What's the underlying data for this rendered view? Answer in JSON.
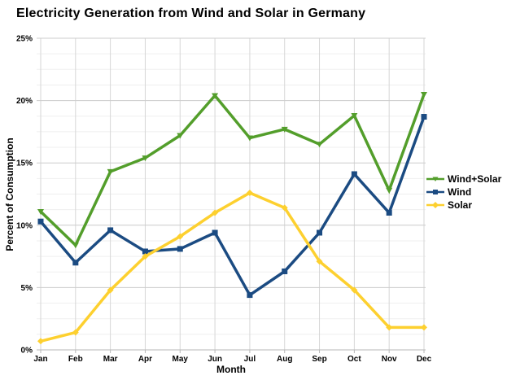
{
  "title": "Electricity Generation from Wind and Solar in Germany",
  "chart_data": {
    "type": "line",
    "title": "Electricity Generation from Wind and Solar in Germany",
    "xlabel": "Month",
    "ylabel": "Percent of Consumption",
    "x": [
      "Jan",
      "Feb",
      "Mar",
      "Apr",
      "May",
      "Jun",
      "Jul",
      "Aug",
      "Sep",
      "Oct",
      "Nov",
      "Dec"
    ],
    "y_ticks": [
      "0%",
      "5%",
      "10%",
      "15%",
      "20%",
      "25%"
    ],
    "ylim": [
      0,
      25
    ],
    "y_major_step": 5,
    "y_minor_step": 1.25,
    "grid": "on",
    "legend_position": "right",
    "series": [
      {
        "name": "Wind+Solar",
        "color": "#539e2b",
        "marker": "triangle-down",
        "values": [
          11.1,
          8.4,
          14.3,
          15.4,
          17.2,
          20.4,
          17.0,
          17.7,
          16.5,
          18.8,
          12.8,
          20.5
        ]
      },
      {
        "name": "Wind",
        "color": "#1b4b82",
        "marker": "square",
        "values": [
          10.3,
          7.0,
          9.6,
          7.9,
          8.1,
          9.4,
          4.4,
          6.3,
          9.4,
          14.1,
          11.0,
          18.7
        ]
      },
      {
        "name": "Solar",
        "color": "#fdd02f",
        "marker": "diamond",
        "values": [
          0.7,
          1.4,
          4.8,
          7.5,
          9.1,
          11.0,
          12.6,
          11.4,
          7.1,
          4.8,
          1.8,
          1.8
        ]
      }
    ]
  },
  "colors": {
    "background": "#ffffff",
    "text": "#000000",
    "grid_minor": "#efefef",
    "grid_major": "#cccccc",
    "grid_vertical": "#d6d6d6",
    "axis": "#b7b7b7",
    "wind_solar": "#539e2b",
    "wind": "#1b4b82",
    "solar": "#fdd02f"
  }
}
